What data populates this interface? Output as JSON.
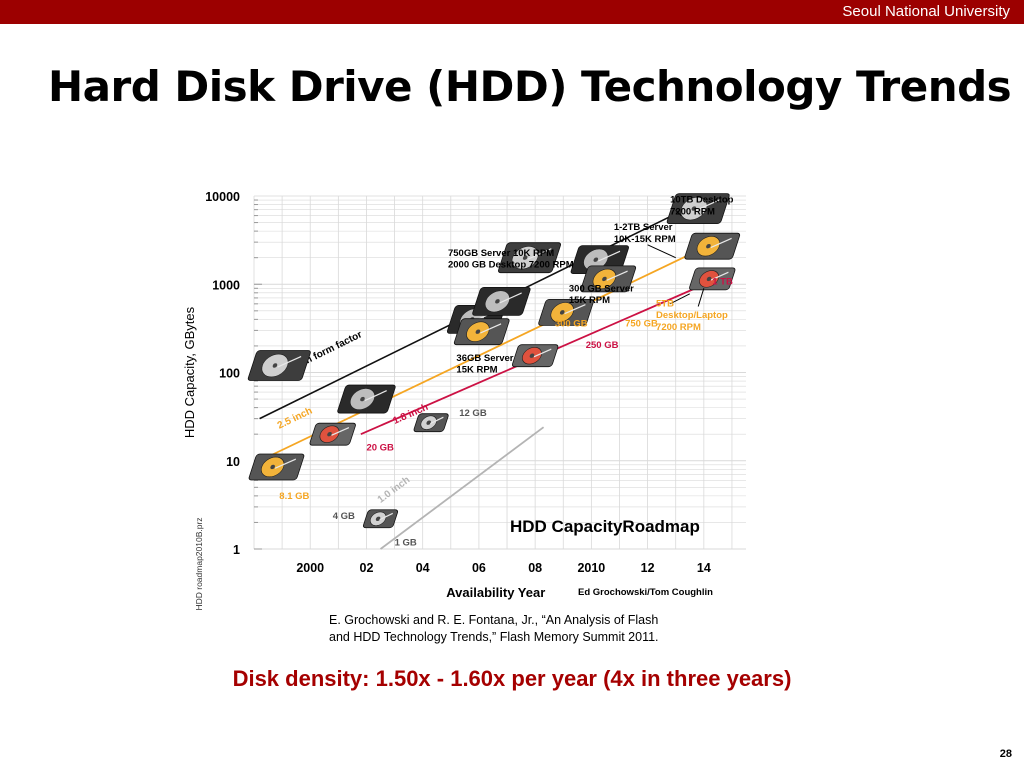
{
  "header": {
    "university": "Seoul National University"
  },
  "slide": {
    "title": "Hard Disk Drive (HDD) Technology Trends",
    "citation_line1": "E. Grochowski and R. E. Fontana, Jr., “An Analysis of Flash",
    "citation_line2": "and HDD Technology Trends,” Flash Memory Summit 2011.",
    "density_note": "Disk density: 1.50x - 1.60x per year (4x in three years)",
    "page_number": "28"
  },
  "colors": {
    "topbar": "#9c0000",
    "note_red": "#a50000",
    "orange": "#f5a623",
    "crimson": "#cc1144",
    "gray": "#b4b4b4",
    "black": "#111111"
  },
  "chart_data": {
    "type": "scatter",
    "title": "HDD CapacityRoadmap",
    "xlabel": "Availability Year",
    "ylabel": "HDD Capacity, GBytes",
    "y_scale": "log",
    "ylim": [
      1,
      10000
    ],
    "xlim": [
      1998,
      2015.5
    ],
    "x_ticks": [
      2000,
      2002,
      2004,
      2006,
      2008,
      2010,
      2012,
      2014
    ],
    "x_tick_labels": [
      "2000",
      "02",
      "04",
      "06",
      "08",
      "2010",
      "12",
      "14"
    ],
    "y_ticks": [
      1,
      10,
      100,
      1000,
      10000
    ],
    "y_tick_labels": [
      "1",
      "10",
      "100",
      "1000",
      "10000"
    ],
    "grid": true,
    "credit": "Ed Grochowski/Tom Coughlin",
    "side_note": "HDD roadmap2010B.prz",
    "series": [
      {
        "name": "3.5 inch form factor",
        "color": "#111111",
        "x": [
          1998.2,
          2014
        ],
        "y": [
          30,
          9000
        ]
      },
      {
        "name": "2.5 inch",
        "color": "#f5a623",
        "x": [
          1998.2,
          2014.6
        ],
        "y": [
          10,
          3200
        ]
      },
      {
        "name": "1.8 inch",
        "color": "#cc1144",
        "x": [
          2001.8,
          2014.6
        ],
        "y": [
          20,
          1200
        ]
      },
      {
        "name": "1.0 inch",
        "color": "#b4b4b4",
        "x": [
          2002.5,
          2008.3
        ],
        "y": [
          1,
          24
        ]
      }
    ],
    "annotations": [
      {
        "text": "10TB Desktop",
        "x": 2012.8,
        "y": 8400,
        "color": "#000000"
      },
      {
        "text": "7200 RPM",
        "x": 2012.8,
        "y": 6200,
        "color": "#000000"
      },
      {
        "text": "1-2TB Server",
        "x": 2010.8,
        "y": 4100,
        "color": "#000000"
      },
      {
        "text": "10K-15K RPM",
        "x": 2010.8,
        "y": 3000,
        "color": "#000000"
      },
      {
        "text": "750GB Server 10K RPM",
        "x": 2004.9,
        "y": 2100,
        "color": "#000000"
      },
      {
        "text": "2000 GB Desktop 7200 RPM",
        "x": 2004.9,
        "y": 1550,
        "color": "#000000"
      },
      {
        "text": "300 GB Server",
        "x": 2009.2,
        "y": 830,
        "color": "#000000"
      },
      {
        "text": "15K RPM",
        "x": 2009.2,
        "y": 610,
        "color": "#000000"
      },
      {
        "text": "36GB Server",
        "x": 2005.2,
        "y": 135,
        "color": "#000000"
      },
      {
        "text": "15K RPM",
        "x": 2005.2,
        "y": 100,
        "color": "#000000"
      },
      {
        "text": "300 GB",
        "x": 2008.7,
        "y": 330,
        "color": "#f5a623"
      },
      {
        "text": "750 GB",
        "x": 2011.2,
        "y": 330,
        "color": "#f5a623"
      },
      {
        "text": "250 GB",
        "x": 2009.8,
        "y": 190,
        "color": "#cc1144"
      },
      {
        "text": "1 TB",
        "x": 2014.3,
        "y": 1000,
        "color": "#cc1144"
      },
      {
        "text": "5TB",
        "x": 2012.3,
        "y": 560,
        "color": "#f5a623"
      },
      {
        "text": "Desktop/Laptop",
        "x": 2012.3,
        "y": 415,
        "color": "#f5a623"
      },
      {
        "text": "7200 RPM",
        "x": 2012.3,
        "y": 305,
        "color": "#f5a623"
      },
      {
        "text": "20 GB",
        "x": 2002.0,
        "y": 13,
        "color": "#cc1144"
      },
      {
        "text": "8.1 GB",
        "x": 1998.9,
        "y": 3.7,
        "color": "#f5a623"
      },
      {
        "text": "4 GB",
        "x": 2000.8,
        "y": 2.2,
        "color": "#555555"
      },
      {
        "text": "12 GB",
        "x": 2005.3,
        "y": 32,
        "color": "#555555"
      },
      {
        "text": "1 GB",
        "x": 2003,
        "y": 1.1,
        "color": "#555555"
      }
    ],
    "drives": [
      {
        "x": 1998.9,
        "y": 120,
        "kind": "gray-large"
      },
      {
        "x": 1998.8,
        "y": 8.5,
        "kind": "yellow"
      },
      {
        "x": 2002.0,
        "y": 50,
        "kind": "gray-server"
      },
      {
        "x": 2000.8,
        "y": 20,
        "kind": "red"
      },
      {
        "x": 2004.3,
        "y": 27,
        "kind": "gray-small"
      },
      {
        "x": 2002.5,
        "y": 2.2,
        "kind": "gray-small"
      },
      {
        "x": 2005.9,
        "y": 400,
        "kind": "gray-server"
      },
      {
        "x": 2006.8,
        "y": 640,
        "kind": "gray-server"
      },
      {
        "x": 2006.1,
        "y": 290,
        "kind": "yellow"
      },
      {
        "x": 2007.8,
        "y": 2000,
        "kind": "gray-large"
      },
      {
        "x": 2010.3,
        "y": 1900,
        "kind": "gray-server"
      },
      {
        "x": 2009.1,
        "y": 480,
        "kind": "yellow"
      },
      {
        "x": 2008.0,
        "y": 155,
        "kind": "red"
      },
      {
        "x": 2010.6,
        "y": 1150,
        "kind": "yellow"
      },
      {
        "x": 2013.8,
        "y": 7200,
        "kind": "gray-large"
      },
      {
        "x": 2014.3,
        "y": 2700,
        "kind": "yellow"
      },
      {
        "x": 2014.3,
        "y": 1150,
        "kind": "red"
      }
    ]
  }
}
